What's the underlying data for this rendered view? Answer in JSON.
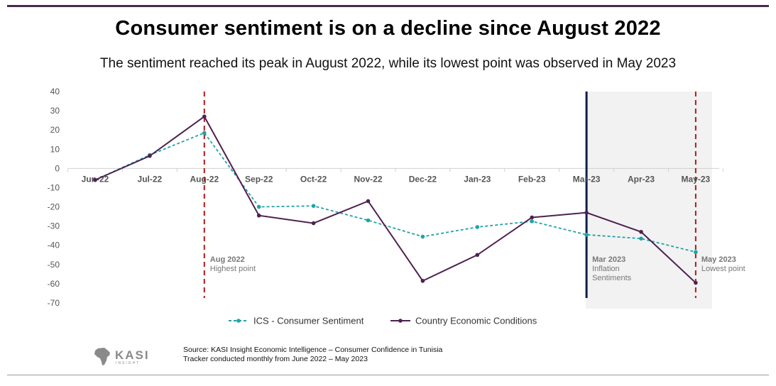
{
  "header": {
    "title": "Consumer sentiment is on a decline since August 2022",
    "subtitle": "The sentiment reached its peak in August 2022, while its lowest point was observed in May 2023"
  },
  "chart_data": {
    "type": "line",
    "title": "Consumer sentiment is on a decline since August 2022",
    "subtitle": "The sentiment reached its peak in August 2022, while its lowest point was observed in May 2023",
    "categories": [
      "Jun-22",
      "Jul-22",
      "Aug-22",
      "Sep-22",
      "Oct-22",
      "Nov-22",
      "Dec-22",
      "Jan-23",
      "Feb-23",
      "Mar-23",
      "Apr-23",
      "May-23"
    ],
    "ylim": [
      -70,
      40
    ],
    "yticks": [
      40,
      30,
      20,
      10,
      0,
      -10,
      -20,
      -30,
      -40,
      -50,
      -60,
      -70
    ],
    "grid": false,
    "legend_position": "bottom",
    "series": [
      {
        "name": "ICS - Consumer Sentiment",
        "style": "dashed",
        "color": "#1fa3a8",
        "values": [
          -6,
          7,
          18.5,
          -20,
          -19.5,
          -27,
          -35.5,
          -30.5,
          -27.5,
          -34.5,
          -36.5,
          -43.5
        ]
      },
      {
        "name": "Country Economic Conditions",
        "style": "solid",
        "color": "#4e2150",
        "values": [
          -6,
          6.5,
          27,
          -24.5,
          -28.5,
          -17,
          -58.5,
          -45,
          -25.5,
          -23,
          -33,
          -59.5
        ]
      }
    ],
    "annotations": [
      {
        "category": "Aug-22",
        "title": "Aug 2022",
        "text": [
          "Highest point"
        ],
        "line": "dashed",
        "color": "#b01a1a"
      },
      {
        "category": "Mar-23",
        "title": "Mar 2023",
        "text": [
          "Inflation",
          "Sentiments"
        ],
        "line": "solid",
        "color": "#0d1f4a"
      },
      {
        "category": "May-23",
        "title": "May 2023",
        "text": [
          "Lowest point"
        ],
        "line": "dashed",
        "color": "#b01a1a"
      }
    ],
    "shaded_range": {
      "from": "Mar-23",
      "to": "May-23",
      "color": "#f2f2f2"
    }
  },
  "footer": {
    "source_line1": "Source: KASI Insight Economic Intelligence – Consumer Confidence in Tunisia",
    "source_line2": "Tracker conducted monthly from June 2022 – May 2023",
    "logo_text": "KASI",
    "logo_subtext": "INSIGHT"
  }
}
